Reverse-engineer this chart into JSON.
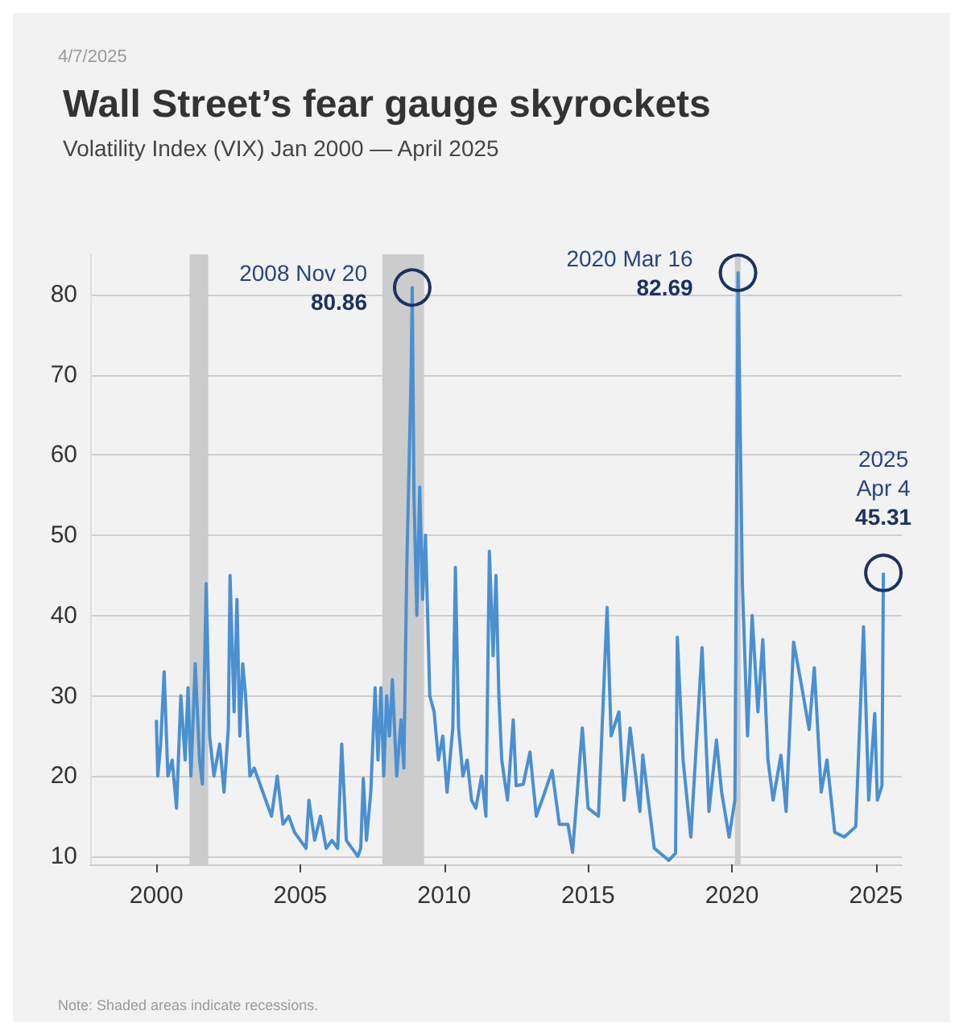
{
  "chart_data": {
    "type": "line",
    "title": "Wall Street’s fear gauge skyrockets",
    "subtitle": "Volatility Index (VIX) Jan 2000 — April 2025",
    "x": [
      2000.0,
      2000.05,
      2000.15,
      2000.27,
      2000.4,
      2000.55,
      2000.7,
      2000.85,
      2001.0,
      2001.1,
      2001.2,
      2001.35,
      2001.5,
      2001.6,
      2001.73,
      2001.85,
      2002.0,
      2002.2,
      2002.35,
      2002.5,
      2002.56,
      2002.7,
      2002.8,
      2002.9,
      2003.0,
      2003.1,
      2003.25,
      2003.4,
      2003.6,
      2003.8,
      2004.0,
      2004.2,
      2004.4,
      2004.6,
      2004.8,
      2005.0,
      2005.2,
      2005.3,
      2005.5,
      2005.7,
      2005.9,
      2006.1,
      2006.3,
      2006.44,
      2006.6,
      2006.8,
      2007.0,
      2007.1,
      2007.19,
      2007.3,
      2007.45,
      2007.6,
      2007.7,
      2007.8,
      2007.9,
      2008.0,
      2008.1,
      2008.2,
      2008.35,
      2008.5,
      2008.6,
      2008.7,
      2008.85,
      2008.89,
      2008.95,
      2009.05,
      2009.15,
      2009.25,
      2009.35,
      2009.5,
      2009.65,
      2009.8,
      2009.95,
      2010.1,
      2010.3,
      2010.39,
      2010.5,
      2010.65,
      2010.8,
      2010.95,
      2011.1,
      2011.3,
      2011.45,
      2011.57,
      2011.7,
      2011.8,
      2011.9,
      2012.0,
      2012.2,
      2012.4,
      2012.5,
      2012.75,
      2012.98,
      2013.2,
      2013.4,
      2013.75,
      2014.0,
      2014.3,
      2014.46,
      2014.8,
      2015.0,
      2015.36,
      2015.66,
      2015.8,
      2016.07,
      2016.25,
      2016.46,
      2016.8,
      2016.9,
      2017.3,
      2017.8,
      2018.04,
      2018.1,
      2018.3,
      2018.57,
      2018.96,
      2019.2,
      2019.46,
      2019.64,
      2019.9,
      2020.1,
      2020.21,
      2020.36,
      2020.54,
      2020.7,
      2020.9,
      2021.07,
      2021.25,
      2021.43,
      2021.7,
      2021.88,
      2022.14,
      2022.4,
      2022.68,
      2022.86,
      2023.1,
      2023.3,
      2023.57,
      2023.9,
      2024.3,
      2024.57,
      2024.75,
      2024.96,
      2025.05,
      2025.21,
      2025.26
    ],
    "series": [
      {
        "color": "#4a90d0",
        "values": [
          27,
          20,
          24,
          33,
          20,
          22,
          16,
          30,
          22,
          31,
          20,
          34,
          22,
          19,
          44,
          25,
          20,
          24,
          18,
          26,
          45,
          28,
          42,
          25,
          34,
          30,
          20,
          21,
          19,
          17,
          15,
          20,
          14,
          15,
          13,
          12,
          11,
          17,
          12,
          15,
          11,
          12,
          11,
          24,
          12,
          11,
          10,
          11,
          19.7,
          12,
          18,
          31,
          22,
          31,
          20,
          30,
          25,
          32,
          20,
          27,
          21,
          46,
          70,
          80.86,
          55,
          40,
          56,
          42,
          50,
          30,
          28,
          22,
          25,
          18,
          26,
          46,
          26,
          20,
          22,
          17,
          16,
          20,
          15,
          48,
          35,
          45,
          30,
          22,
          17,
          27,
          18.8,
          19,
          23,
          15,
          17,
          20.7,
          14,
          14,
          10.5,
          26,
          16,
          15,
          41,
          25,
          28,
          17,
          26,
          15.6,
          22.6,
          11,
          9.5,
          10.4,
          37.3,
          22,
          12.4,
          36,
          15.6,
          24.5,
          18,
          12.4,
          17,
          82.69,
          44,
          25,
          40,
          28,
          37,
          22,
          17,
          22.6,
          15.6,
          36.7,
          31.6,
          25.8,
          33.5,
          18,
          22,
          13,
          12.4,
          13.7,
          38.6,
          17,
          27.8,
          17,
          18.8,
          45.31
        ]
      }
    ],
    "xlim": [
      1997.7,
      2025.9
    ],
    "xticks": [
      2000,
      2005,
      2010,
      2015,
      2020,
      2025
    ],
    "ylim": [
      9,
      85
    ],
    "yticks": [
      10,
      20,
      30,
      40,
      50,
      60,
      70,
      80
    ],
    "grid": "y",
    "marker": "none",
    "line_style": "solid",
    "bands": [
      {
        "axis": "x",
        "from": 2001.15,
        "to": 2001.8,
        "color": "#cccccc"
      },
      {
        "axis": "x",
        "from": 2007.85,
        "to": 2009.3,
        "color": "#cccccc"
      },
      {
        "axis": "x",
        "from": 2020.1,
        "to": 2020.3,
        "color": "#cccccc"
      }
    ],
    "annotations": [
      "4/7/2025",
      {
        "text": "2008 Nov 20\n80.86",
        "x": 2008.89,
        "y": 80.86
      },
      {
        "text": "2020 Mar 16\n82.69",
        "x": 2020.21,
        "y": 82.69
      },
      {
        "text": "2025\nApr 4\n45.31",
        "x": 2025.26,
        "y": 45.31
      },
      "Note: Shaded areas indicate recessions."
    ]
  }
}
